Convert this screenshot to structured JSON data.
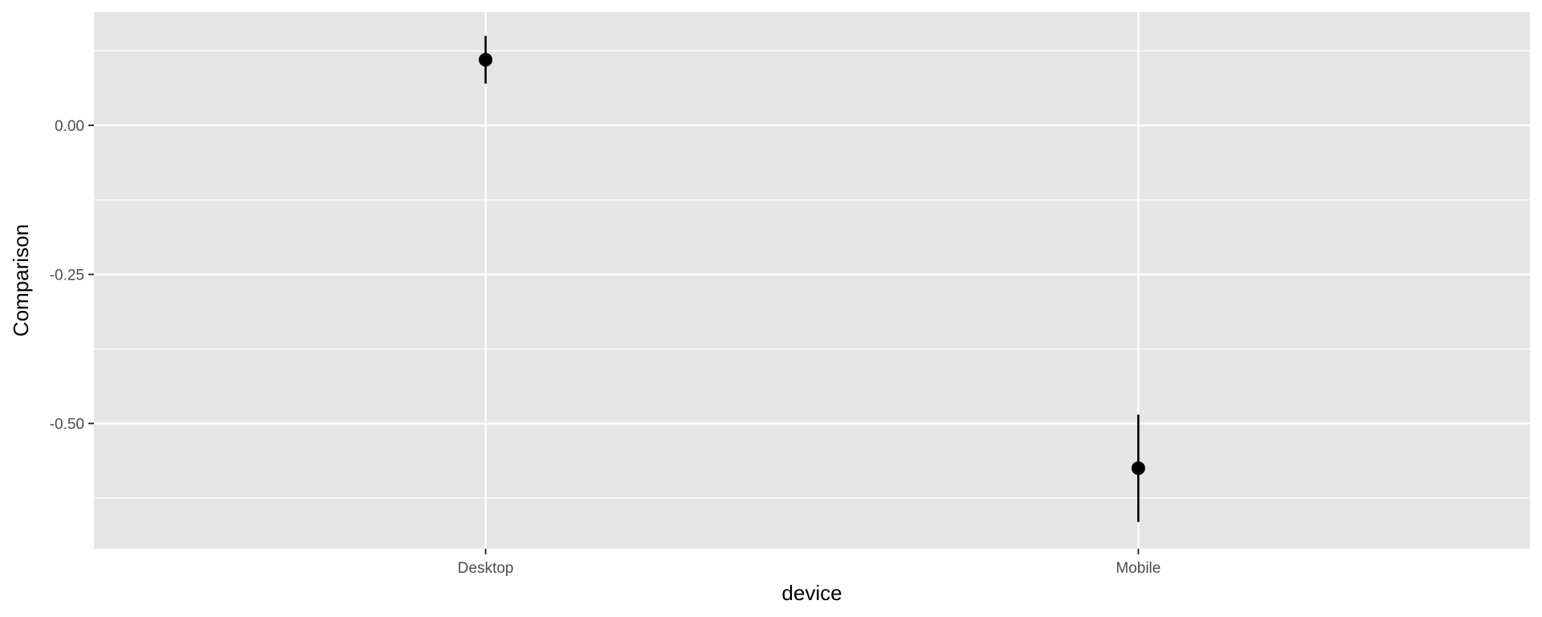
{
  "chart_data": {
    "type": "scatter",
    "title": "",
    "xlabel": "device",
    "ylabel": "Comparison",
    "categories": [
      "Desktop",
      "Mobile"
    ],
    "points": [
      {
        "category": "Desktop",
        "value": 0.11,
        "lower": 0.07,
        "upper": 0.15
      },
      {
        "category": "Mobile",
        "value": -0.575,
        "lower": -0.665,
        "upper": -0.485
      }
    ],
    "ylim": [
      -0.71,
      0.19
    ],
    "yticks": [
      {
        "value": 0.0,
        "label": "0.00"
      },
      {
        "value": -0.25,
        "label": "-0.25"
      },
      {
        "value": -0.5,
        "label": "-0.50"
      }
    ],
    "y_minor_gridlines": [
      0.125,
      -0.125,
      -0.375,
      -0.625
    ],
    "grid": true,
    "legend": "none",
    "colors": {
      "panel_background": "#e5e5e5",
      "grid": "#ffffff",
      "point": "#000000",
      "tick_text": "#4d4d4d",
      "axis_title": "#000000",
      "tick_mark": "#333333"
    }
  }
}
